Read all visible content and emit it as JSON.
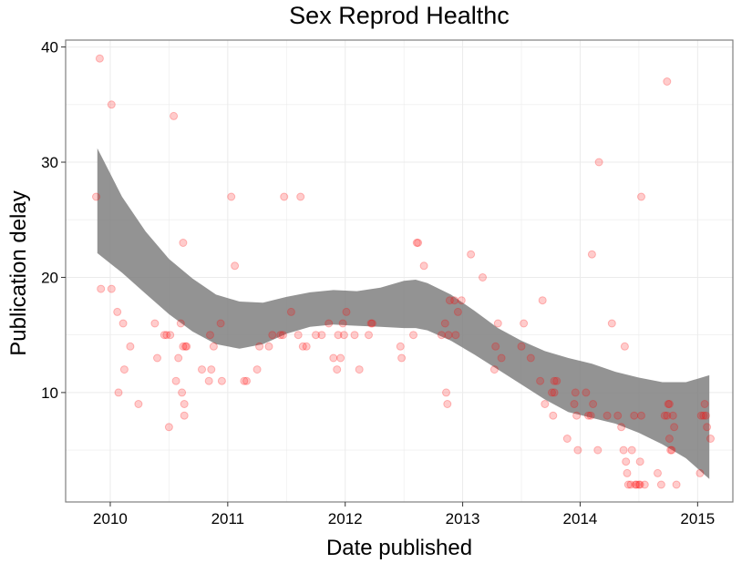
{
  "chart_data": {
    "type": "scatter",
    "title": "Sex Reprod Healthc",
    "xlabel": "Date published",
    "ylabel": "Publication delay",
    "xlim": [
      2009.62,
      2015.3
    ],
    "ylim": [
      0.5,
      40.6
    ],
    "x_ticks": [
      2010,
      2011,
      2012,
      2013,
      2014,
      2015
    ],
    "x_tick_labels": [
      "2010",
      "2011",
      "2012",
      "2013",
      "2014",
      "2015"
    ],
    "y_ticks": [
      10,
      20,
      30,
      40
    ],
    "y_tick_labels": [
      "10",
      "20",
      "30",
      "40"
    ],
    "grid": true,
    "legend": "none",
    "colors": {
      "point": "#ff0000",
      "band": "#808080",
      "panel_border": "#7f7f7f",
      "grid": "#ebebeb"
    },
    "points": [
      [
        2009.88,
        27
      ],
      [
        2009.91,
        39
      ],
      [
        2009.92,
        19
      ],
      [
        2010.01,
        35
      ],
      [
        2010.01,
        19
      ],
      [
        2010.06,
        17
      ],
      [
        2010.07,
        10
      ],
      [
        2010.11,
        16
      ],
      [
        2010.12,
        12
      ],
      [
        2010.17,
        14
      ],
      [
        2010.24,
        9
      ],
      [
        2010.38,
        16
      ],
      [
        2010.4,
        13
      ],
      [
        2010.46,
        15
      ],
      [
        2010.48,
        15
      ],
      [
        2010.5,
        7
      ],
      [
        2010.51,
        15
      ],
      [
        2010.54,
        34
      ],
      [
        2010.56,
        11
      ],
      [
        2010.58,
        13
      ],
      [
        2010.6,
        16
      ],
      [
        2010.61,
        10
      ],
      [
        2010.62,
        14
      ],
      [
        2010.62,
        23
      ],
      [
        2010.63,
        9
      ],
      [
        2010.63,
        8
      ],
      [
        2010.64,
        14
      ],
      [
        2010.65,
        14
      ],
      [
        2010.78,
        12
      ],
      [
        2010.84,
        11
      ],
      [
        2010.85,
        15
      ],
      [
        2010.86,
        12
      ],
      [
        2010.88,
        14
      ],
      [
        2010.94,
        16
      ],
      [
        2010.95,
        11
      ],
      [
        2011.03,
        27
      ],
      [
        2011.06,
        21
      ],
      [
        2011.14,
        11
      ],
      [
        2011.16,
        11
      ],
      [
        2011.25,
        12
      ],
      [
        2011.27,
        14
      ],
      [
        2011.35,
        14
      ],
      [
        2011.38,
        15
      ],
      [
        2011.45,
        15
      ],
      [
        2011.47,
        15
      ],
      [
        2011.48,
        27
      ],
      [
        2011.54,
        17
      ],
      [
        2011.6,
        15
      ],
      [
        2011.62,
        27
      ],
      [
        2011.64,
        14
      ],
      [
        2011.67,
        14
      ],
      [
        2011.75,
        15
      ],
      [
        2011.8,
        15
      ],
      [
        2011.86,
        16
      ],
      [
        2011.9,
        13
      ],
      [
        2011.93,
        12
      ],
      [
        2011.94,
        15
      ],
      [
        2011.96,
        13
      ],
      [
        2011.98,
        16
      ],
      [
        2011.99,
        15
      ],
      [
        2012.01,
        17
      ],
      [
        2012.08,
        15
      ],
      [
        2012.12,
        12
      ],
      [
        2012.2,
        15
      ],
      [
        2012.22,
        16
      ],
      [
        2012.23,
        16
      ],
      [
        2012.47,
        14
      ],
      [
        2012.48,
        13
      ],
      [
        2012.58,
        15
      ],
      [
        2012.61,
        23
      ],
      [
        2012.62,
        23
      ],
      [
        2012.67,
        21
      ],
      [
        2012.82,
        15
      ],
      [
        2012.85,
        16
      ],
      [
        2012.86,
        10
      ],
      [
        2012.87,
        9
      ],
      [
        2012.88,
        15
      ],
      [
        2012.89,
        18
      ],
      [
        2012.93,
        18
      ],
      [
        2012.94,
        15
      ],
      [
        2012.96,
        17
      ],
      [
        2012.99,
        18
      ],
      [
        2013.07,
        22
      ],
      [
        2013.17,
        20
      ],
      [
        2013.27,
        12
      ],
      [
        2013.28,
        14
      ],
      [
        2013.3,
        16
      ],
      [
        2013.33,
        13
      ],
      [
        2013.5,
        14
      ],
      [
        2013.52,
        16
      ],
      [
        2013.58,
        13
      ],
      [
        2013.66,
        11
      ],
      [
        2013.68,
        18
      ],
      [
        2013.7,
        9
      ],
      [
        2013.76,
        10
      ],
      [
        2013.77,
        8
      ],
      [
        2013.78,
        10
      ],
      [
        2013.78,
        11
      ],
      [
        2013.8,
        11
      ],
      [
        2013.89,
        6
      ],
      [
        2013.95,
        9
      ],
      [
        2013.96,
        10
      ],
      [
        2013.97,
        8
      ],
      [
        2013.98,
        5
      ],
      [
        2014.05,
        10
      ],
      [
        2014.07,
        8
      ],
      [
        2014.09,
        8
      ],
      [
        2014.1,
        22
      ],
      [
        2014.11,
        9
      ],
      [
        2014.15,
        5
      ],
      [
        2014.16,
        30
      ],
      [
        2014.23,
        8
      ],
      [
        2014.27,
        16
      ],
      [
        2014.32,
        8
      ],
      [
        2014.35,
        7
      ],
      [
        2014.37,
        5
      ],
      [
        2014.38,
        14
      ],
      [
        2014.39,
        4
      ],
      [
        2014.4,
        3
      ],
      [
        2014.41,
        2
      ],
      [
        2014.43,
        2
      ],
      [
        2014.44,
        5
      ],
      [
        2014.46,
        8
      ],
      [
        2014.47,
        2
      ],
      [
        2014.48,
        2
      ],
      [
        2014.5,
        2
      ],
      [
        2014.51,
        2
      ],
      [
        2014.51,
        4
      ],
      [
        2014.52,
        8
      ],
      [
        2014.52,
        27
      ],
      [
        2014.55,
        2
      ],
      [
        2014.66,
        3
      ],
      [
        2014.69,
        2
      ],
      [
        2014.72,
        8
      ],
      [
        2014.74,
        8
      ],
      [
        2014.74,
        37
      ],
      [
        2014.75,
        9
      ],
      [
        2014.76,
        9
      ],
      [
        2014.76,
        6
      ],
      [
        2014.77,
        5
      ],
      [
        2014.78,
        5
      ],
      [
        2014.79,
        8
      ],
      [
        2014.8,
        7
      ],
      [
        2014.82,
        2
      ],
      [
        2015.02,
        3
      ],
      [
        2015.03,
        8
      ],
      [
        2015.05,
        8
      ],
      [
        2015.06,
        9
      ],
      [
        2015.07,
        8
      ],
      [
        2015.08,
        7
      ],
      [
        2015.11,
        6
      ]
    ],
    "smooth_band": {
      "x": [
        2009.89,
        2010.1,
        2010.3,
        2010.5,
        2010.7,
        2010.9,
        2011.1,
        2011.3,
        2011.5,
        2011.7,
        2011.9,
        2012.1,
        2012.3,
        2012.5,
        2012.6,
        2012.7,
        2012.9,
        2013.1,
        2013.3,
        2013.5,
        2013.7,
        2013.9,
        2014.1,
        2014.3,
        2014.5,
        2014.7,
        2014.9,
        2015.1
      ],
      "upper": [
        31.2,
        27.0,
        24.0,
        21.6,
        19.9,
        18.5,
        17.9,
        17.8,
        18.3,
        18.7,
        18.9,
        18.8,
        19.1,
        19.7,
        19.8,
        19.5,
        18.5,
        17.1,
        15.6,
        14.5,
        13.6,
        13.0,
        12.5,
        11.8,
        11.3,
        10.9,
        10.9,
        11.5
      ],
      "lower": [
        22.1,
        20.4,
        18.6,
        16.8,
        15.3,
        14.2,
        13.8,
        14.2,
        15.1,
        15.7,
        15.9,
        15.8,
        15.7,
        15.6,
        15.6,
        15.4,
        14.5,
        13.3,
        12.0,
        10.7,
        9.4,
        8.3,
        7.8,
        7.3,
        6.5,
        5.5,
        4.3,
        2.5
      ]
    }
  }
}
